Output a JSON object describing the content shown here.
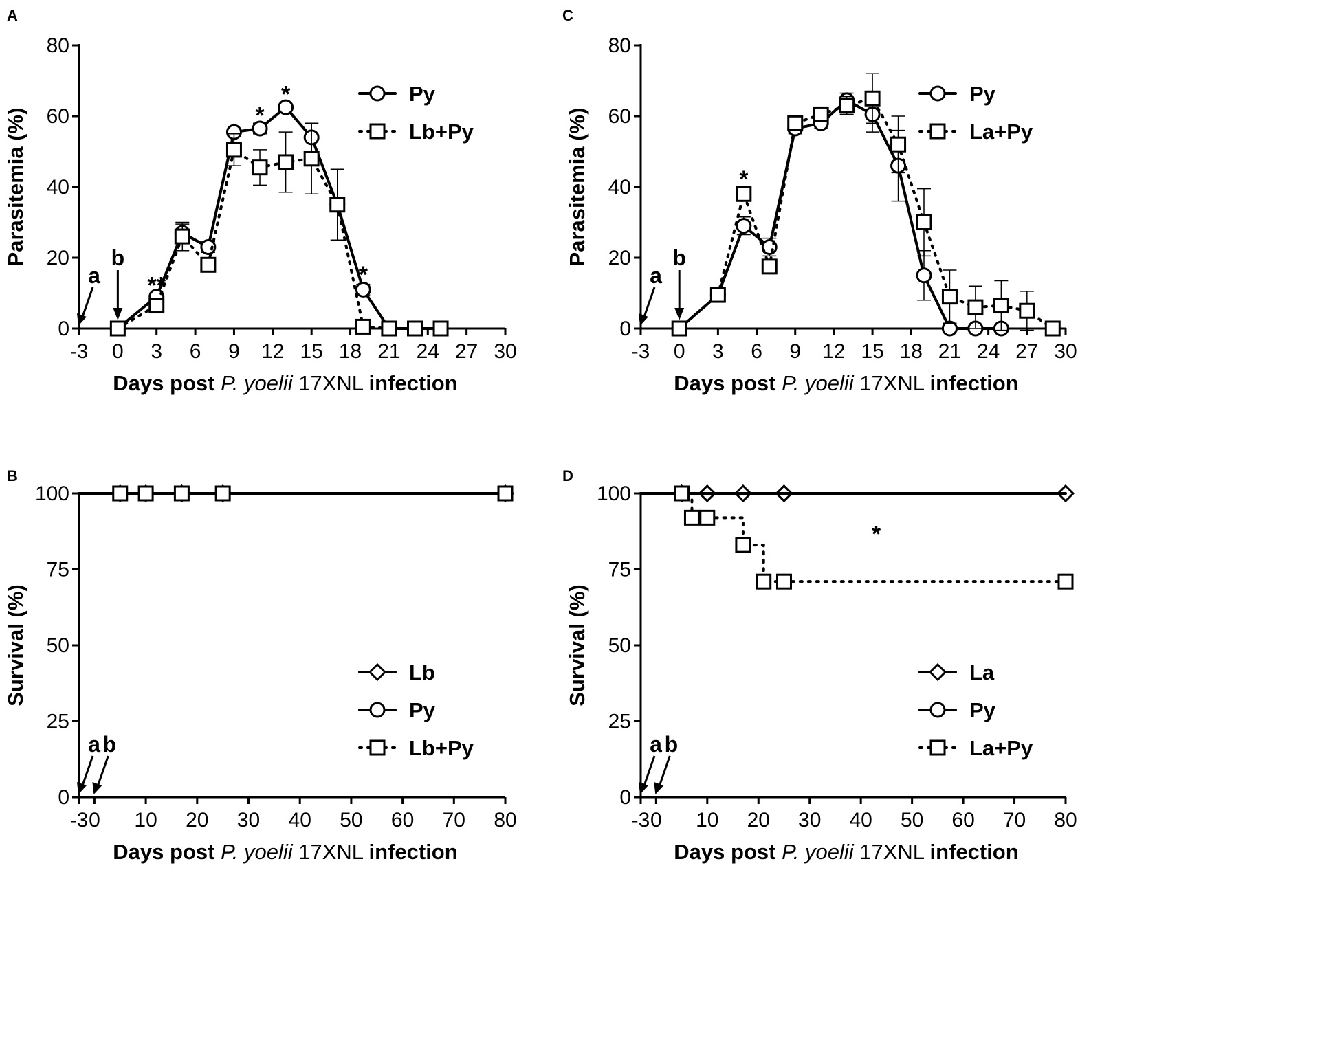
{
  "chart_data": [
    {
      "panel": "A",
      "type": "line",
      "ylabel": "Parasitemia (%)",
      "xlabel_parts": [
        "Days post ",
        "P. yoelii",
        " 17XNL ",
        "infection"
      ],
      "xlim": [
        -3,
        30
      ],
      "ylim": [
        0,
        80
      ],
      "xticks": [
        "-3",
        "0",
        "3",
        "6",
        "9",
        "12",
        "15",
        "18",
        "21",
        "24",
        "27",
        "30"
      ],
      "yticks": [
        "0",
        "20",
        "40",
        "60",
        "80"
      ],
      "legend_position": "top-right",
      "series": [
        {
          "name": "Py",
          "marker": "circle",
          "line": "solid",
          "x": [
            0,
            3,
            5,
            7,
            9,
            11,
            13,
            15,
            17,
            19,
            21,
            23,
            25
          ],
          "y": [
            0,
            9,
            27,
            23,
            55.5,
            56.5,
            62.5,
            54,
            35,
            11,
            0,
            0,
            0
          ],
          "err": [
            0,
            1,
            2.5,
            1.5,
            1,
            1.5,
            1,
            4,
            2,
            1.5,
            0,
            0,
            0
          ]
        },
        {
          "name": "Lb+Py",
          "marker": "square",
          "line": "dotted",
          "x": [
            0,
            3,
            5,
            7,
            9,
            11,
            13,
            15,
            17,
            19,
            21,
            23,
            25
          ],
          "y": [
            0,
            6.5,
            26,
            18,
            50.5,
            45.5,
            47,
            48,
            35,
            0.5,
            0,
            0,
            0
          ],
          "err": [
            0,
            1,
            4,
            2,
            4.5,
            5,
            8.5,
            10,
            10,
            0.5,
            0,
            0,
            0
          ]
        }
      ],
      "annotations": [
        {
          "text": "**",
          "x": 3,
          "y": 10
        },
        {
          "text": "*",
          "x": 11,
          "y": 58
        },
        {
          "text": "*",
          "x": 13,
          "y": 64
        },
        {
          "text": "*",
          "x": 19,
          "y": 13
        }
      ],
      "arrows": [
        {
          "label": "a",
          "x": -3
        },
        {
          "label": "b",
          "x": 0
        }
      ]
    },
    {
      "panel": "B",
      "type": "line",
      "ylabel": "Survival (%)",
      "xlabel_parts": [
        "Days post ",
        "P. yoelii",
        " 17XNL ",
        "infection"
      ],
      "xlim": [
        -3,
        80
      ],
      "ylim": [
        0,
        100
      ],
      "xticks": [
        "-3",
        "0",
        "10",
        "20",
        "30",
        "40",
        "50",
        "60",
        "70",
        "80"
      ],
      "yticks": [
        "0",
        "25",
        "50",
        "75",
        "100"
      ],
      "legend_position": "bottom-right",
      "series": [
        {
          "name": "Lb",
          "marker": "diamond",
          "line": "solid",
          "x": [
            -3,
            5,
            10,
            17,
            25,
            80
          ],
          "y": [
            100,
            100,
            100,
            100,
            100,
            100
          ],
          "markers_x": [
            5,
            10,
            17,
            25,
            80
          ]
        },
        {
          "name": "Py",
          "marker": "circle",
          "line": "solid",
          "x": [
            -3,
            5,
            10,
            17,
            25,
            80
          ],
          "y": [
            100,
            100,
            100,
            100,
            100,
            100
          ],
          "markers_x": [
            5,
            10,
            17,
            25,
            80
          ]
        },
        {
          "name": "Lb+Py",
          "marker": "square",
          "line": "dotted",
          "x": [
            -3,
            5,
            10,
            17,
            25,
            80
          ],
          "y": [
            100,
            100,
            100,
            100,
            100,
            100
          ],
          "markers_x": [
            5,
            10,
            17,
            25,
            80
          ]
        }
      ],
      "annotations": [],
      "arrows": [
        {
          "label": "a",
          "x": -3
        },
        {
          "label": "b",
          "x": 0
        }
      ]
    },
    {
      "panel": "C",
      "type": "line",
      "ylabel": "Parasitemia (%)",
      "xlabel_parts": [
        "Days post ",
        "P. yoelii",
        " 17XNL ",
        "infection"
      ],
      "xlim": [
        -3,
        30
      ],
      "ylim": [
        0,
        80
      ],
      "xticks": [
        "-3",
        "0",
        "3",
        "6",
        "9",
        "12",
        "15",
        "18",
        "21",
        "24",
        "27",
        "30"
      ],
      "yticks": [
        "0",
        "20",
        "40",
        "60",
        "80"
      ],
      "legend_position": "top-right",
      "series": [
        {
          "name": "Py",
          "marker": "circle",
          "line": "solid",
          "x": [
            0,
            3,
            5,
            7,
            9,
            11,
            13,
            15,
            17,
            19,
            21,
            23,
            25
          ],
          "y": [
            0,
            9.5,
            29,
            23,
            56.5,
            58,
            64.5,
            60.5,
            46,
            15,
            0,
            0,
            0
          ],
          "err": [
            0,
            1,
            2.5,
            2.5,
            1.5,
            1.5,
            2,
            5,
            10,
            7,
            0,
            0,
            0
          ]
        },
        {
          "name": "La+Py",
          "marker": "square",
          "line": "dotted",
          "x": [
            0,
            3,
            5,
            7,
            9,
            11,
            13,
            15,
            17,
            19,
            21,
            23,
            25,
            27,
            29
          ],
          "y": [
            0,
            9.5,
            38,
            17.5,
            58,
            60.5,
            63,
            65,
            52,
            30,
            9,
            6,
            6.5,
            5,
            0
          ],
          "err": [
            0,
            1,
            2,
            2,
            1.5,
            2,
            2.5,
            7,
            8,
            9.5,
            7.5,
            6,
            7,
            5.5,
            0
          ]
        }
      ],
      "annotations": [
        {
          "text": "*",
          "x": 5,
          "y": 40
        }
      ],
      "arrows": [
        {
          "label": "a",
          "x": -3
        },
        {
          "label": "b",
          "x": 0
        }
      ]
    },
    {
      "panel": "D",
      "type": "line",
      "ylabel": "Survival (%)",
      "xlabel_parts": [
        "Days post ",
        "P. yoelii",
        " 17XNL ",
        "infection"
      ],
      "xlim": [
        -3,
        80
      ],
      "ylim": [
        0,
        100
      ],
      "xticks": [
        "-3",
        "0",
        "10",
        "20",
        "30",
        "40",
        "50",
        "60",
        "70",
        "80"
      ],
      "yticks": [
        "0",
        "25",
        "50",
        "75",
        "100"
      ],
      "legend_position": "bottom-right",
      "series": [
        {
          "name": "La",
          "marker": "diamond",
          "line": "solid",
          "x": [
            -3,
            5,
            10,
            17,
            25,
            80
          ],
          "y": [
            100,
            100,
            100,
            100,
            100,
            100
          ],
          "markers_x": [
            5,
            10,
            17,
            25,
            80
          ]
        },
        {
          "name": "Py",
          "marker": "circle",
          "line": "solid",
          "x": [
            -3,
            5,
            10,
            17,
            25,
            80
          ],
          "y": [
            100,
            100,
            100,
            100,
            100,
            100
          ],
          "markers_x": [
            5
          ]
        },
        {
          "name": "La+Py",
          "marker": "square",
          "line": "dotted",
          "step": true,
          "x": [
            -3,
            5,
            7,
            10,
            17,
            21,
            25,
            80
          ],
          "y": [
            100,
            100,
            92,
            92,
            83,
            71,
            71,
            71
          ],
          "markers_x": [
            5,
            7,
            10,
            17,
            21,
            25,
            80
          ]
        }
      ],
      "annotations": [
        {
          "text": "*",
          "x": 43,
          "y": 84
        }
      ],
      "arrows": [
        {
          "label": "a",
          "x": -3
        },
        {
          "label": "b",
          "x": 0
        }
      ]
    }
  ]
}
